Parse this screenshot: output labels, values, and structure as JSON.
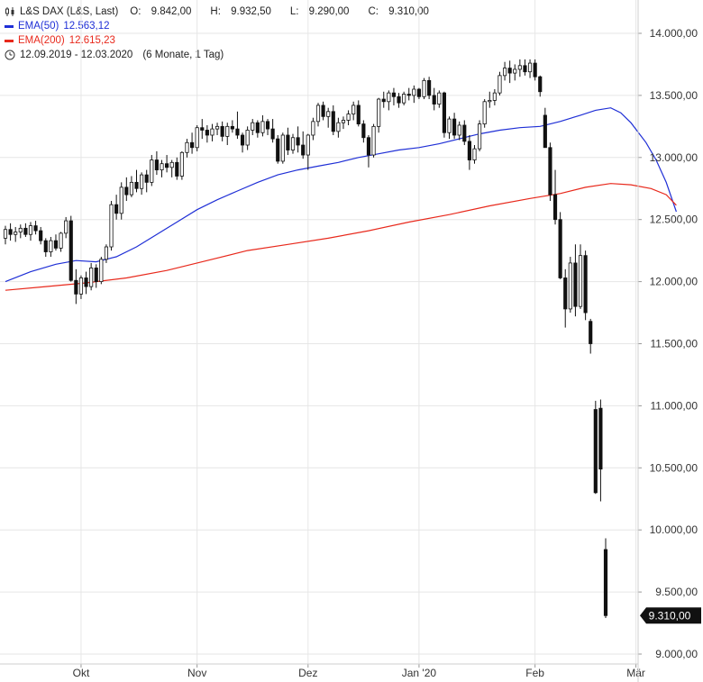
{
  "header": {
    "instrument": "L&S DAX (L&S, Last)",
    "ohlc": [
      {
        "label": "O:",
        "value": "9.842,00"
      },
      {
        "label": "H:",
        "value": "9.932,50"
      },
      {
        "label": "L:",
        "value": "9.290,00"
      },
      {
        "label": "C:",
        "value": "9.310,00"
      }
    ],
    "ema50": {
      "label": "EMA(50)",
      "value": "12.563,12",
      "color": "#1f2fd6"
    },
    "ema200": {
      "label": "EMA(200)",
      "value": "12.615,23",
      "color": "#e8291c"
    },
    "period": "12.09.2019 - 12.03.2020",
    "period_detail": "(6 Monate, 1 Tag)",
    "icons": [
      "candlestick-icon",
      "clock-icon"
    ]
  },
  "last_price_label": "9.310,00",
  "chart_data": {
    "type": "candlestick",
    "ylim": [
      8900,
      14200
    ],
    "y_ticks": [
      {
        "value": 14000,
        "label": "14.000,00"
      },
      {
        "value": 13500,
        "label": "13.500,00"
      },
      {
        "value": 13000,
        "label": "13.000,00"
      },
      {
        "value": 12500,
        "label": "12.500,00"
      },
      {
        "value": 12000,
        "label": "12.000,00"
      },
      {
        "value": 11500,
        "label": "11.500,00"
      },
      {
        "value": 11000,
        "label": "11.000,00"
      },
      {
        "value": 10500,
        "label": "10.500,00"
      },
      {
        "value": 10000,
        "label": "10.000,00"
      },
      {
        "value": 9500,
        "label": "9.500,00"
      },
      {
        "value": 9000,
        "label": "9.000,00"
      }
    ],
    "x_ticks": [
      {
        "index": 15,
        "label": "Okt"
      },
      {
        "index": 38,
        "label": "Nov"
      },
      {
        "index": 60,
        "label": "Dez"
      },
      {
        "index": 82,
        "label": "Jan '20"
      },
      {
        "index": 105,
        "label": "Feb"
      },
      {
        "index": 125,
        "label": "Mär"
      }
    ],
    "candles": [
      [
        12350,
        12450,
        12300,
        12420
      ],
      [
        12420,
        12470,
        12330,
        12380
      ],
      [
        12380,
        12440,
        12320,
        12400
      ],
      [
        12400,
        12460,
        12350,
        12430
      ],
      [
        12430,
        12470,
        12360,
        12380
      ],
      [
        12380,
        12480,
        12330,
        12450
      ],
      [
        12450,
        12490,
        12380,
        12410
      ],
      [
        12410,
        12440,
        12300,
        12330
      ],
      [
        12330,
        12350,
        12200,
        12240
      ],
      [
        12240,
        12360,
        12200,
        12330
      ],
      [
        12330,
        12380,
        12250,
        12270
      ],
      [
        12270,
        12400,
        12240,
        12390
      ],
      [
        12390,
        12520,
        12350,
        12490
      ],
      [
        12490,
        12530,
        12000,
        12010
      ],
      [
        12010,
        12100,
        11820,
        11900
      ],
      [
        11900,
        12050,
        11860,
        12030
      ],
      [
        12030,
        12080,
        11900,
        11960
      ],
      [
        11960,
        12150,
        11930,
        12110
      ],
      [
        12110,
        12140,
        11950,
        12000
      ],
      [
        12000,
        12200,
        11980,
        12180
      ],
      [
        12180,
        12300,
        12150,
        12280
      ],
      [
        12280,
        12650,
        12250,
        12620
      ],
      [
        12620,
        12700,
        12500,
        12550
      ],
      [
        12550,
        12800,
        12500,
        12760
      ],
      [
        12760,
        12840,
        12650,
        12700
      ],
      [
        12700,
        12850,
        12680,
        12800
      ],
      [
        12800,
        12900,
        12720,
        12750
      ],
      [
        12750,
        12880,
        12700,
        12860
      ],
      [
        12860,
        12900,
        12720,
        12800
      ],
      [
        12800,
        13020,
        12770,
        12980
      ],
      [
        12980,
        13050,
        12860,
        12900
      ],
      [
        12900,
        12980,
        12840,
        12950
      ],
      [
        12950,
        13020,
        12880,
        12920
      ],
      [
        12920,
        12980,
        12840,
        12960
      ],
      [
        12960,
        13000,
        12820,
        12850
      ],
      [
        12850,
        13050,
        12820,
        13040
      ],
      [
        13040,
        13150,
        13000,
        13120
      ],
      [
        13120,
        13200,
        13030,
        13080
      ],
      [
        13080,
        13260,
        13050,
        13240
      ],
      [
        13240,
        13310,
        13150,
        13220
      ],
      [
        13220,
        13260,
        13120,
        13180
      ],
      [
        13180,
        13270,
        13130,
        13230
      ],
      [
        13230,
        13280,
        13180,
        13250
      ],
      [
        13250,
        13290,
        13130,
        13170
      ],
      [
        13170,
        13280,
        13100,
        13250
      ],
      [
        13250,
        13300,
        13200,
        13230
      ],
      [
        13230,
        13370,
        13150,
        13180
      ],
      [
        13180,
        13200,
        13040,
        13100
      ],
      [
        13100,
        13250,
        13060,
        13220
      ],
      [
        13220,
        13310,
        13180,
        13280
      ],
      [
        13280,
        13300,
        13160,
        13200
      ],
      [
        13200,
        13340,
        13170,
        13290
      ],
      [
        13290,
        13310,
        13180,
        13230
      ],
      [
        13230,
        13310,
        13120,
        13150
      ],
      [
        13150,
        13180,
        12950,
        12970
      ],
      [
        12970,
        13200,
        12950,
        13180
      ],
      [
        13180,
        13240,
        13020,
        13060
      ],
      [
        13060,
        13190,
        13030,
        13160
      ],
      [
        13160,
        13250,
        13040,
        13100
      ],
      [
        13100,
        13210,
        12990,
        13020
      ],
      [
        13020,
        13190,
        12900,
        13180
      ],
      [
        13180,
        13320,
        13140,
        13290
      ],
      [
        13290,
        13440,
        13250,
        13420
      ],
      [
        13420,
        13450,
        13300,
        13330
      ],
      [
        13330,
        13400,
        13240,
        13370
      ],
      [
        13370,
        13420,
        13180,
        13210
      ],
      [
        13210,
        13320,
        13160,
        13280
      ],
      [
        13280,
        13330,
        13230,
        13300
      ],
      [
        13300,
        13380,
        13260,
        13350
      ],
      [
        13350,
        13450,
        13300,
        13420
      ],
      [
        13420,
        13460,
        13250,
        13270
      ],
      [
        13270,
        13300,
        13120,
        13160
      ],
      [
        13160,
        13180,
        12920,
        13020
      ],
      [
        13020,
        13270,
        13000,
        13250
      ],
      [
        13250,
        13480,
        13200,
        13470
      ],
      [
        13470,
        13530,
        13400,
        13450
      ],
      [
        13450,
        13540,
        13380,
        13520
      ],
      [
        13520,
        13560,
        13420,
        13490
      ],
      [
        13490,
        13520,
        13400,
        13440
      ],
      [
        13440,
        13530,
        13420,
        13510
      ],
      [
        13510,
        13560,
        13460,
        13500
      ],
      [
        13500,
        13580,
        13440,
        13550
      ],
      [
        13550,
        13560,
        13470,
        13490
      ],
      [
        13490,
        13640,
        13470,
        13620
      ],
      [
        13620,
        13650,
        13470,
        13500
      ],
      [
        13500,
        13560,
        13380,
        13430
      ],
      [
        13430,
        13540,
        13400,
        13520
      ],
      [
        13520,
        13530,
        13160,
        13200
      ],
      [
        13200,
        13330,
        13150,
        13310
      ],
      [
        13310,
        13360,
        13150,
        13180
      ],
      [
        13180,
        13290,
        13140,
        13260
      ],
      [
        13260,
        13300,
        13100,
        13130
      ],
      [
        13130,
        13180,
        12900,
        12980
      ],
      [
        12980,
        13100,
        12950,
        13070
      ],
      [
        13070,
        13300,
        13050,
        13270
      ],
      [
        13270,
        13470,
        13240,
        13450
      ],
      [
        13450,
        13530,
        13400,
        13460
      ],
      [
        13460,
        13550,
        13420,
        13520
      ],
      [
        13520,
        13690,
        13500,
        13660
      ],
      [
        13660,
        13770,
        13620,
        13720
      ],
      [
        13720,
        13780,
        13600,
        13680
      ],
      [
        13680,
        13750,
        13620,
        13710
      ],
      [
        13710,
        13790,
        13650,
        13740
      ],
      [
        13740,
        13790,
        13660,
        13690
      ],
      [
        13690,
        13790,
        13640,
        13760
      ],
      [
        13760,
        13790,
        13620,
        13650
      ],
      [
        13650,
        13660,
        13490,
        13530
      ],
      [
        13340,
        13400,
        13080,
        13080
      ],
      [
        13080,
        13120,
        12650,
        12700
      ],
      [
        12700,
        12900,
        12460,
        12500
      ],
      [
        12500,
        12560,
        12020,
        12030
      ],
      [
        12030,
        12100,
        11630,
        11780
      ],
      [
        11780,
        12200,
        11750,
        12150
      ],
      [
        12150,
        12300,
        11720,
        11800
      ],
      [
        11800,
        12300,
        11780,
        12210
      ],
      [
        12210,
        12250,
        11690,
        11750
      ],
      [
        11680,
        11700,
        11420,
        11500
      ],
      [
        10970,
        11040,
        10290,
        10300
      ],
      [
        10980,
        11050,
        10230,
        10490
      ],
      [
        9842,
        9932.5,
        9290,
        9310
      ]
    ],
    "indices_skip": [],
    "series": [
      {
        "name": "EMA(50)",
        "color": "#1f2fd6",
        "values": [
          [
            0,
            12000
          ],
          [
            5,
            12080
          ],
          [
            10,
            12140
          ],
          [
            14,
            12170
          ],
          [
            18,
            12160
          ],
          [
            22,
            12200
          ],
          [
            26,
            12280
          ],
          [
            30,
            12380
          ],
          [
            34,
            12480
          ],
          [
            38,
            12580
          ],
          [
            42,
            12660
          ],
          [
            46,
            12730
          ],
          [
            50,
            12800
          ],
          [
            54,
            12860
          ],
          [
            58,
            12900
          ],
          [
            62,
            12930
          ],
          [
            66,
            12960
          ],
          [
            70,
            13000
          ],
          [
            74,
            13030
          ],
          [
            78,
            13060
          ],
          [
            82,
            13080
          ],
          [
            86,
            13110
          ],
          [
            90,
            13150
          ],
          [
            94,
            13190
          ],
          [
            98,
            13220
          ],
          [
            102,
            13240
          ],
          [
            106,
            13250
          ],
          [
            110,
            13290
          ],
          [
            114,
            13340
          ],
          [
            117,
            13380
          ],
          [
            120,
            13400
          ],
          [
            122,
            13360
          ],
          [
            124,
            13280
          ],
          [
            127,
            13120
          ],
          [
            129,
            12980
          ],
          [
            131,
            12800
          ],
          [
            133,
            12563.12
          ]
        ]
      },
      {
        "name": "EMA(200)",
        "color": "#e8291c",
        "values": [
          [
            0,
            11930
          ],
          [
            8,
            11960
          ],
          [
            16,
            11990
          ],
          [
            24,
            12030
          ],
          [
            32,
            12090
          ],
          [
            40,
            12170
          ],
          [
            48,
            12250
          ],
          [
            56,
            12300
          ],
          [
            64,
            12350
          ],
          [
            72,
            12410
          ],
          [
            80,
            12480
          ],
          [
            88,
            12540
          ],
          [
            96,
            12610
          ],
          [
            104,
            12670
          ],
          [
            110,
            12710
          ],
          [
            115,
            12760
          ],
          [
            120,
            12790
          ],
          [
            124,
            12780
          ],
          [
            128,
            12750
          ],
          [
            131,
            12700
          ],
          [
            133,
            12615.23
          ]
        ]
      }
    ]
  }
}
